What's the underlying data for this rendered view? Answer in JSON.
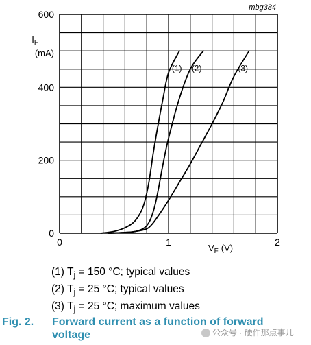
{
  "chart_data": {
    "type": "line",
    "code_label": "mbg384",
    "ylabel_symbol": "I",
    "ylabel_sub": "F",
    "ylabel_unit": "(mA)",
    "xlabel_symbol": "V",
    "xlabel_sub": "F",
    "xlabel_unit": "(V)",
    "xlim": [
      0,
      2
    ],
    "ylim": [
      0,
      600
    ],
    "x_ticks": [
      "0",
      "1",
      "2"
    ],
    "y_ticks": [
      "0",
      "200",
      "400",
      "600"
    ],
    "grid": true,
    "series": [
      {
        "name": "(1)",
        "points": [
          [
            0.38,
            0
          ],
          [
            0.5,
            5
          ],
          [
            0.6,
            15
          ],
          [
            0.68,
            30
          ],
          [
            0.74,
            55
          ],
          [
            0.78,
            85
          ],
          [
            0.82,
            140
          ],
          [
            0.86,
            220
          ],
          [
            0.9,
            290
          ],
          [
            0.95,
            370
          ],
          [
            1.0,
            440
          ],
          [
            1.1,
            500
          ]
        ]
      },
      {
        "name": "(2)",
        "points": [
          [
            0.45,
            0
          ],
          [
            0.6,
            2
          ],
          [
            0.7,
            5
          ],
          [
            0.78,
            15
          ],
          [
            0.83,
            35
          ],
          [
            0.87,
            70
          ],
          [
            0.9,
            110
          ],
          [
            0.95,
            190
          ],
          [
            1.0,
            260
          ],
          [
            1.1,
            370
          ],
          [
            1.2,
            450
          ],
          [
            1.32,
            500
          ]
        ]
      },
      {
        "name": "(3)",
        "points": [
          [
            0.45,
            0
          ],
          [
            0.6,
            2
          ],
          [
            0.7,
            5
          ],
          [
            0.8,
            12
          ],
          [
            0.85,
            25
          ],
          [
            0.9,
            45
          ],
          [
            1.0,
            90
          ],
          [
            1.1,
            140
          ],
          [
            1.2,
            190
          ],
          [
            1.3,
            245
          ],
          [
            1.4,
            300
          ],
          [
            1.5,
            360
          ],
          [
            1.6,
            430
          ],
          [
            1.74,
            500
          ]
        ]
      }
    ]
  },
  "legend": [
    {
      "prefix": "(1) T",
      "sub": "j",
      "suffix": " = 150 °C; typical values"
    },
    {
      "prefix": "(2) T",
      "sub": "j",
      "suffix": " = 25 °C; typical values"
    },
    {
      "prefix": "(3) T",
      "sub": "j",
      "suffix": " = 25 °C; maximum values"
    }
  ],
  "caption": {
    "fig": "Fig. 2.",
    "title": "Forward current as a function of forward voltage"
  },
  "watermark": "公众号 · 硬件那点事儿"
}
